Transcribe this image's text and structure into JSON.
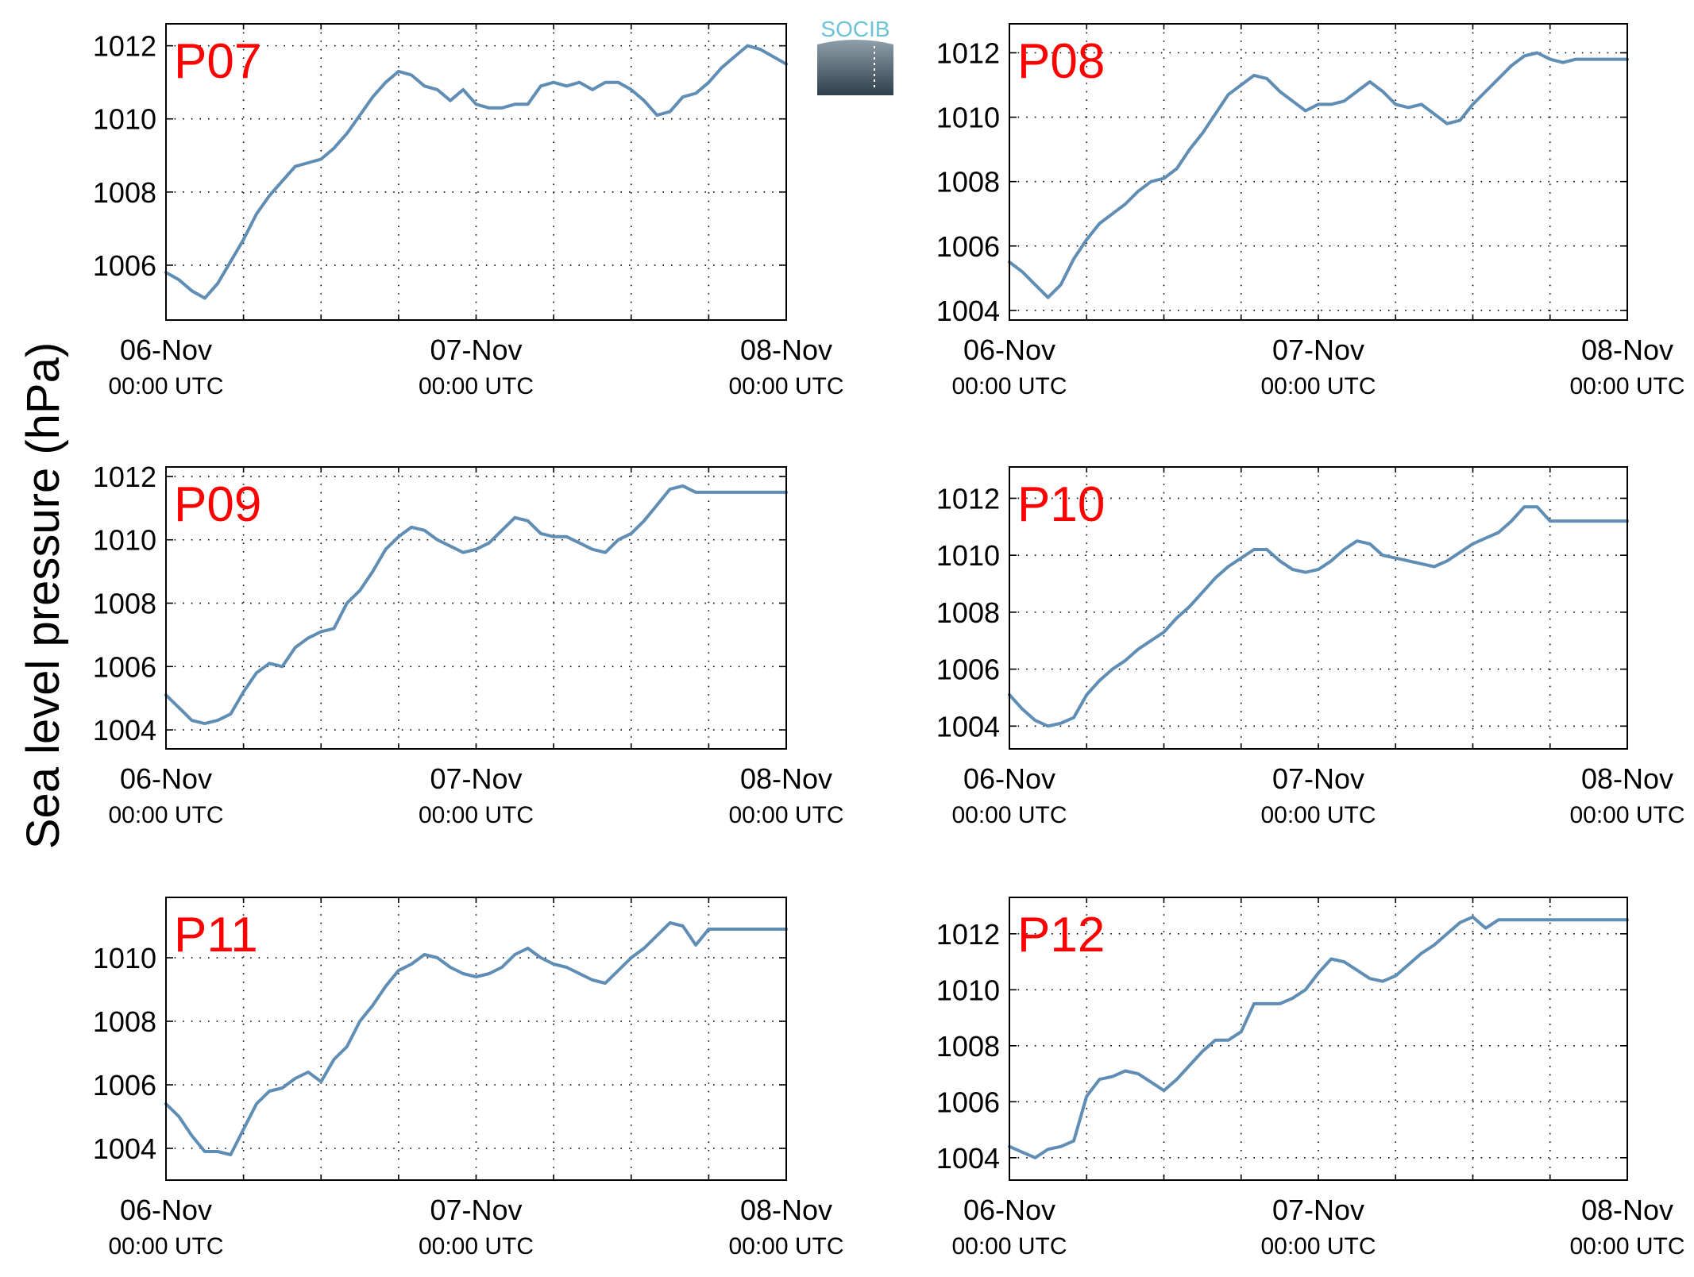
{
  "figure": {
    "ylabel": "Sea level pressure (hPa)",
    "logo_text": "SOCIB",
    "line_color": "#5f8db4",
    "label_color": "#ff0000"
  },
  "chart_data": [
    {
      "type": "line",
      "name": "P07",
      "x_ticks": [
        {
          "label": "06-Nov",
          "sub": "00:00 UTC",
          "pos": 0
        },
        {
          "label": "07-Nov",
          "sub": "00:00 UTC",
          "pos": 24
        },
        {
          "label": "08-Nov",
          "sub": "00:00 UTC",
          "pos": 48
        }
      ],
      "xlim": [
        0,
        48
      ],
      "ylim": [
        1004.5,
        1012.6
      ],
      "y_ticks": [
        1006,
        1008,
        1010,
        1012
      ],
      "x_unit": "hours since 06-Nov 00:00 UTC",
      "x": [
        0,
        1,
        2,
        3,
        4,
        5,
        6,
        7,
        8,
        9,
        10,
        11,
        12,
        13,
        14,
        15,
        16,
        17,
        18,
        19,
        20,
        21,
        22,
        23,
        24,
        25,
        26,
        27,
        28,
        29,
        30,
        31,
        32,
        33,
        34,
        35,
        36,
        37,
        38,
        39,
        40,
        41,
        42,
        43,
        44,
        45,
        46,
        47,
        48
      ],
      "y": [
        1005.8,
        1005.6,
        1005.3,
        1005.1,
        1005.5,
        1006.1,
        1006.7,
        1007.4,
        1007.9,
        1008.3,
        1008.7,
        1008.8,
        1008.9,
        1009.2,
        1009.6,
        1010.1,
        1010.6,
        1011.0,
        1011.3,
        1011.2,
        1010.9,
        1010.8,
        1010.5,
        1010.8,
        1010.4,
        1010.3,
        1010.3,
        1010.4,
        1010.4,
        1010.9,
        1011.0,
        1010.9,
        1011.0,
        1010.8,
        1011.0,
        1011.0,
        1010.8,
        1010.5,
        1010.1,
        1010.2,
        1010.6,
        1010.7,
        1011.0,
        1011.4,
        1011.7,
        1012.0,
        1011.9,
        1011.7,
        1011.5
      ]
    },
    {
      "type": "line",
      "name": "P08",
      "x_ticks": [
        {
          "label": "06-Nov",
          "sub": "00:00 UTC",
          "pos": 0
        },
        {
          "label": "07-Nov",
          "sub": "00:00 UTC",
          "pos": 24
        },
        {
          "label": "08-Nov",
          "sub": "00:00 UTC",
          "pos": 48
        }
      ],
      "xlim": [
        0,
        48
      ],
      "ylim": [
        1003.7,
        1012.9
      ],
      "y_ticks": [
        1004,
        1006,
        1008,
        1010,
        1012
      ],
      "x_unit": "hours since 06-Nov 00:00 UTC",
      "x": [
        0,
        1,
        2,
        3,
        4,
        5,
        6,
        7,
        8,
        9,
        10,
        11,
        12,
        13,
        14,
        15,
        16,
        17,
        18,
        19,
        20,
        21,
        22,
        23,
        24,
        25,
        26,
        27,
        28,
        29,
        30,
        31,
        32,
        33,
        34,
        35,
        36,
        37,
        38,
        39,
        40,
        41,
        42,
        43,
        44,
        45,
        46,
        47,
        48
      ],
      "y": [
        1005.5,
        1005.2,
        1004.8,
        1004.4,
        1004.8,
        1005.6,
        1006.2,
        1006.7,
        1007.0,
        1007.3,
        1007.7,
        1008.0,
        1008.1,
        1008.4,
        1009.0,
        1009.5,
        1010.1,
        1010.7,
        1011.0,
        1011.3,
        1011.2,
        1010.8,
        1010.5,
        1010.2,
        1010.4,
        1010.4,
        1010.5,
        1010.8,
        1011.1,
        1010.8,
        1010.4,
        1010.3,
        1010.4,
        1010.1,
        1009.8,
        1009.9,
        1010.4,
        1010.8,
        1011.2,
        1011.6,
        1011.9,
        1012.0,
        1011.8,
        1011.7,
        1011.8,
        1011.8,
        1011.8,
        1011.8,
        1011.8
      ]
    },
    {
      "type": "line",
      "name": "P09",
      "x_ticks": [
        {
          "label": "06-Nov",
          "sub": "00:00 UTC",
          "pos": 0
        },
        {
          "label": "07-Nov",
          "sub": "00:00 UTC",
          "pos": 24
        },
        {
          "label": "08-Nov",
          "sub": "00:00 UTC",
          "pos": 48
        }
      ],
      "xlim": [
        0,
        48
      ],
      "ylim": [
        1003.4,
        1012.3
      ],
      "y_ticks": [
        1004,
        1006,
        1008,
        1010,
        1012
      ],
      "x_unit": "hours since 06-Nov 00:00 UTC",
      "x": [
        0,
        1,
        2,
        3,
        4,
        5,
        6,
        7,
        8,
        9,
        10,
        11,
        12,
        13,
        14,
        15,
        16,
        17,
        18,
        19,
        20,
        21,
        22,
        23,
        24,
        25,
        26,
        27,
        28,
        29,
        30,
        31,
        32,
        33,
        34,
        35,
        36,
        37,
        38,
        39,
        40,
        41,
        42,
        43,
        44,
        45,
        46,
        47,
        48
      ],
      "y": [
        1005.1,
        1004.7,
        1004.3,
        1004.2,
        1004.3,
        1004.5,
        1005.2,
        1005.8,
        1006.1,
        1006.0,
        1006.6,
        1006.9,
        1007.1,
        1007.2,
        1008.0,
        1008.4,
        1009.0,
        1009.7,
        1010.1,
        1010.4,
        1010.3,
        1010.0,
        1009.8,
        1009.6,
        1009.7,
        1009.9,
        1010.3,
        1010.7,
        1010.6,
        1010.2,
        1010.1,
        1010.1,
        1009.9,
        1009.7,
        1009.6,
        1010.0,
        1010.2,
        1010.6,
        1011.1,
        1011.6,
        1011.7,
        1011.5,
        1011.5,
        1011.5,
        1011.5,
        1011.5,
        1011.5,
        1011.5,
        1011.5
      ]
    },
    {
      "type": "line",
      "name": "P10",
      "x_ticks": [
        {
          "label": "06-Nov",
          "sub": "00:00 UTC",
          "pos": 0
        },
        {
          "label": "07-Nov",
          "sub": "00:00 UTC",
          "pos": 24
        },
        {
          "label": "08-Nov",
          "sub": "00:00 UTC",
          "pos": 48
        }
      ],
      "xlim": [
        0,
        48
      ],
      "ylim": [
        1003.2,
        1013.1
      ],
      "y_ticks": [
        1004,
        1006,
        1008,
        1010,
        1012
      ],
      "x_unit": "hours since 06-Nov 00:00 UTC",
      "x": [
        0,
        1,
        2,
        3,
        4,
        5,
        6,
        7,
        8,
        9,
        10,
        11,
        12,
        13,
        14,
        15,
        16,
        17,
        18,
        19,
        20,
        21,
        22,
        23,
        24,
        25,
        26,
        27,
        28,
        29,
        30,
        31,
        32,
        33,
        34,
        35,
        36,
        37,
        38,
        39,
        40,
        41,
        42,
        43,
        44,
        45,
        46,
        47,
        48
      ],
      "y": [
        1005.1,
        1004.6,
        1004.2,
        1004.0,
        1004.1,
        1004.3,
        1005.1,
        1005.6,
        1006.0,
        1006.3,
        1006.7,
        1007.0,
        1007.3,
        1007.8,
        1008.2,
        1008.7,
        1009.2,
        1009.6,
        1009.9,
        1010.2,
        1010.2,
        1009.8,
        1009.5,
        1009.4,
        1009.5,
        1009.8,
        1010.2,
        1010.5,
        1010.4,
        1010.0,
        1009.9,
        1009.8,
        1009.7,
        1009.6,
        1009.8,
        1010.1,
        1010.4,
        1010.6,
        1010.8,
        1011.2,
        1011.7,
        1011.7,
        1011.2,
        1011.2,
        1011.2,
        1011.2,
        1011.2,
        1011.2,
        1011.2
      ]
    },
    {
      "type": "line",
      "name": "P11",
      "x_ticks": [
        {
          "label": "06-Nov",
          "sub": "00:00 UTC",
          "pos": 0
        },
        {
          "label": "07-Nov",
          "sub": "00:00 UTC",
          "pos": 24
        },
        {
          "label": "08-Nov",
          "sub": "00:00 UTC",
          "pos": 48
        }
      ],
      "xlim": [
        0,
        48
      ],
      "ylim": [
        1003.0,
        1011.9
      ],
      "y_ticks": [
        1004,
        1006,
        1008,
        1010
      ],
      "x_unit": "hours since 06-Nov 00:00 UTC",
      "x": [
        0,
        1,
        2,
        3,
        4,
        5,
        6,
        7,
        8,
        9,
        10,
        11,
        12,
        13,
        14,
        15,
        16,
        17,
        18,
        19,
        20,
        21,
        22,
        23,
        24,
        25,
        26,
        27,
        28,
        29,
        30,
        31,
        32,
        33,
        34,
        35,
        36,
        37,
        38,
        39,
        40,
        41,
        42,
        43,
        44,
        45,
        46,
        47,
        48
      ],
      "y": [
        1005.4,
        1005.0,
        1004.4,
        1003.9,
        1003.9,
        1003.8,
        1004.6,
        1005.4,
        1005.8,
        1005.9,
        1006.2,
        1006.4,
        1006.1,
        1006.8,
        1007.2,
        1008.0,
        1008.5,
        1009.1,
        1009.6,
        1009.8,
        1010.1,
        1010.0,
        1009.7,
        1009.5,
        1009.4,
        1009.5,
        1009.7,
        1010.1,
        1010.3,
        1010.0,
        1009.8,
        1009.7,
        1009.5,
        1009.3,
        1009.2,
        1009.6,
        1010.0,
        1010.3,
        1010.7,
        1011.1,
        1011.0,
        1010.4,
        1010.9,
        1010.9,
        1010.9,
        1010.9,
        1010.9,
        1010.9,
        1010.9
      ]
    },
    {
      "type": "line",
      "name": "P12",
      "x_ticks": [
        {
          "label": "06-Nov",
          "sub": "00:00 UTC",
          "pos": 0
        },
        {
          "label": "07-Nov",
          "sub": "00:00 UTC",
          "pos": 24
        },
        {
          "label": "08-Nov",
          "sub": "00:00 UTC",
          "pos": 48
        }
      ],
      "xlim": [
        0,
        48
      ],
      "ylim": [
        1003.2,
        1013.3
      ],
      "y_ticks": [
        1004,
        1006,
        1008,
        1010,
        1012
      ],
      "x_unit": "hours since 06-Nov 00:00 UTC",
      "x": [
        0,
        1,
        2,
        3,
        4,
        5,
        6,
        7,
        8,
        9,
        10,
        11,
        12,
        13,
        14,
        15,
        16,
        17,
        18,
        19,
        20,
        21,
        22,
        23,
        24,
        25,
        26,
        27,
        28,
        29,
        30,
        31,
        32,
        33,
        34,
        35,
        36,
        37,
        38,
        39,
        40,
        41,
        42,
        43,
        44,
        45,
        46,
        47,
        48
      ],
      "y": [
        1004.4,
        1004.2,
        1004.0,
        1004.3,
        1004.4,
        1004.6,
        1006.2,
        1006.8,
        1006.9,
        1007.1,
        1007.0,
        1006.7,
        1006.4,
        1006.8,
        1007.3,
        1007.8,
        1008.2,
        1008.2,
        1008.5,
        1009.5,
        1009.5,
        1009.5,
        1009.7,
        1010.0,
        1010.6,
        1011.1,
        1011.0,
        1010.7,
        1010.4,
        1010.3,
        1010.5,
        1010.9,
        1011.3,
        1011.6,
        1012.0,
        1012.4,
        1012.6,
        1012.2,
        1012.5,
        1012.5,
        1012.5,
        1012.5,
        1012.5,
        1012.5,
        1012.5,
        1012.5,
        1012.5,
        1012.5,
        1012.5
      ]
    }
  ]
}
